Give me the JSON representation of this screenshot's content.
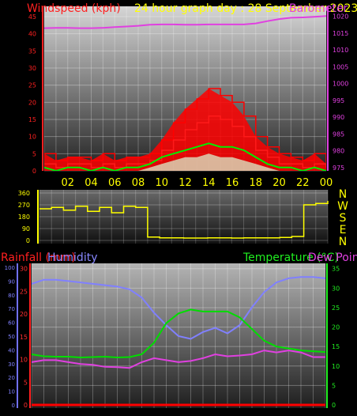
{
  "chart_data": [
    {
      "type": "line",
      "title": "24 hour graph day : 28 September 2023",
      "left_axis_label": "Windspeed (kph)",
      "right_axis_label": "Barometer",
      "x_ticks": [
        "02",
        "04",
        "06",
        "08",
        "10",
        "12",
        "14",
        "16",
        "18",
        "20",
        "22",
        "00"
      ],
      "y_left_ticks": [
        "0",
        "5",
        "10",
        "15",
        "20",
        "25",
        "30",
        "35",
        "40",
        "45"
      ],
      "y_left_lim": [
        0,
        48
      ],
      "y_right_ticks": [
        "975",
        "980",
        "985",
        "990",
        "995",
        "1000",
        "1005",
        "1010",
        "1015",
        "1020"
      ],
      "y_right_lim": [
        974,
        1023
      ],
      "x": [
        0,
        1,
        2,
        3,
        4,
        5,
        6,
        7,
        8,
        9,
        10,
        11,
        12,
        13,
        14,
        15,
        16,
        17,
        18,
        19,
        20,
        21,
        22,
        23,
        24
      ],
      "series": [
        {
          "key": "barometer",
          "axis": "right",
          "color": "#e040e0",
          "values": [
            1016.5,
            1016.6,
            1016.6,
            1016.5,
            1016.5,
            1016.6,
            1016.8,
            1017,
            1017.2,
            1017.5,
            1017.6,
            1017.6,
            1017.5,
            1017.5,
            1017.6,
            1017.6,
            1017.6,
            1017.6,
            1017.9,
            1018.6,
            1019.2,
            1019.6,
            1019.7,
            1019.9,
            1020.1
          ]
        },
        {
          "key": "gust",
          "axis": "left",
          "color": "#ff0000",
          "values": [
            5,
            3,
            4,
            4,
            3,
            5,
            3,
            4,
            4,
            5,
            9,
            14,
            18,
            21,
            24,
            22,
            20,
            16,
            10,
            7,
            5,
            4,
            3,
            5,
            2
          ]
        },
        {
          "key": "wind_speed",
          "axis": "left",
          "color": "#ff1a1a",
          "values": [
            2,
            1,
            2,
            2,
            1,
            2,
            1,
            2,
            2,
            3,
            6,
            9,
            12,
            14,
            16,
            15,
            13,
            10,
            6,
            4,
            2,
            2,
            1,
            2,
            1
          ]
        },
        {
          "key": "average",
          "axis": "left",
          "color": "#00ee00",
          "values": [
            1,
            0,
            1,
            1,
            0,
            1,
            0,
            1,
            1,
            2,
            4,
            5,
            6,
            7,
            8,
            7,
            7,
            6,
            4,
            2,
            1,
            1,
            0,
            1,
            0
          ]
        },
        {
          "key": "latest",
          "axis": "left",
          "color": "#d8ffd8",
          "values": [
            0,
            0,
            0,
            0,
            0,
            0,
            0,
            0,
            0,
            1,
            2,
            3,
            4,
            4,
            5,
            4,
            4,
            3,
            2,
            1,
            0,
            0,
            0,
            0,
            0
          ]
        }
      ]
    },
    {
      "type": "line",
      "left_ticks": [
        "0",
        "90",
        "180",
        "270",
        "360"
      ],
      "y_lim": [
        0,
        360
      ],
      "compass_letters": [
        "N",
        "W",
        "S",
        "E",
        "N"
      ],
      "x": [
        0,
        1,
        2,
        3,
        4,
        5,
        6,
        7,
        8,
        9,
        10,
        11,
        12,
        13,
        14,
        15,
        16,
        17,
        18,
        19,
        20,
        21,
        22,
        23,
        24
      ],
      "series": [
        {
          "key": "wind_direction",
          "color": "#ffff00",
          "values": [
            240,
            250,
            230,
            260,
            220,
            250,
            210,
            260,
            250,
            25,
            20,
            20,
            18,
            18,
            20,
            20,
            18,
            20,
            20,
            20,
            22,
            30,
            270,
            280,
            300
          ]
        }
      ]
    },
    {
      "type": "line",
      "labels": {
        "rainfall": "Rainfall (mm)",
        "humidity": "Humidity",
        "temperature": "Temperature (°C)",
        "dewpoint": "Dew Point"
      },
      "y_humidity_ticks": [
        "0",
        "10",
        "20",
        "30",
        "40",
        "50",
        "60",
        "70",
        "80",
        "90",
        "100"
      ],
      "y_humidity_lim": [
        0,
        100
      ],
      "y_rain_ticks": [
        "0",
        "5",
        "10",
        "15",
        "20",
        "25",
        "30"
      ],
      "y_rain_lim": [
        0,
        30
      ],
      "y_temp_ticks": [
        "0",
        "5",
        "10",
        "15",
        "20",
        "25",
        "30",
        "35"
      ],
      "y_temp_lim": [
        0,
        35
      ],
      "x": [
        0,
        1,
        2,
        3,
        4,
        5,
        6,
        7,
        8,
        9,
        10,
        11,
        12,
        13,
        14,
        15,
        16,
        17,
        18,
        19,
        20,
        21,
        22,
        23,
        24
      ],
      "series": [
        {
          "key": "humidity",
          "axis": "humidity",
          "color": "#8080ff",
          "values": [
            88,
            91,
            91,
            90,
            89,
            88,
            87,
            86,
            84,
            78,
            67,
            58,
            50,
            48,
            53,
            56,
            52,
            58,
            71,
            82,
            89,
            92,
            93,
            93,
            92
          ]
        },
        {
          "key": "temperature",
          "axis": "temp",
          "color": "#00dd00",
          "values": [
            13,
            12.5,
            12.4,
            12.4,
            12.2,
            12.3,
            12.4,
            12.2,
            12.3,
            13,
            16,
            21,
            23.5,
            24.5,
            24,
            24,
            24,
            22.5,
            19.5,
            16.5,
            15,
            14.5,
            14,
            13.8,
            13.6
          ]
        },
        {
          "key": "dewpoint",
          "axis": "temp",
          "color": "#e040e0",
          "values": [
            11,
            11.5,
            11.5,
            11,
            10.5,
            10.3,
            9.8,
            9.7,
            9.5,
            11,
            12,
            11.5,
            11,
            11.3,
            12,
            13,
            12.5,
            12.7,
            13,
            14,
            13.5,
            14,
            13.5,
            12.3,
            12.3
          ]
        },
        {
          "key": "rainfall",
          "axis": "rain",
          "color": "#ff0000",
          "values": [
            0,
            0,
            0,
            0,
            0,
            0,
            0,
            0,
            0,
            0,
            0,
            0,
            0,
            0,
            0,
            0,
            0,
            0,
            0,
            0,
            0,
            0,
            0,
            0,
            0
          ]
        }
      ]
    }
  ]
}
